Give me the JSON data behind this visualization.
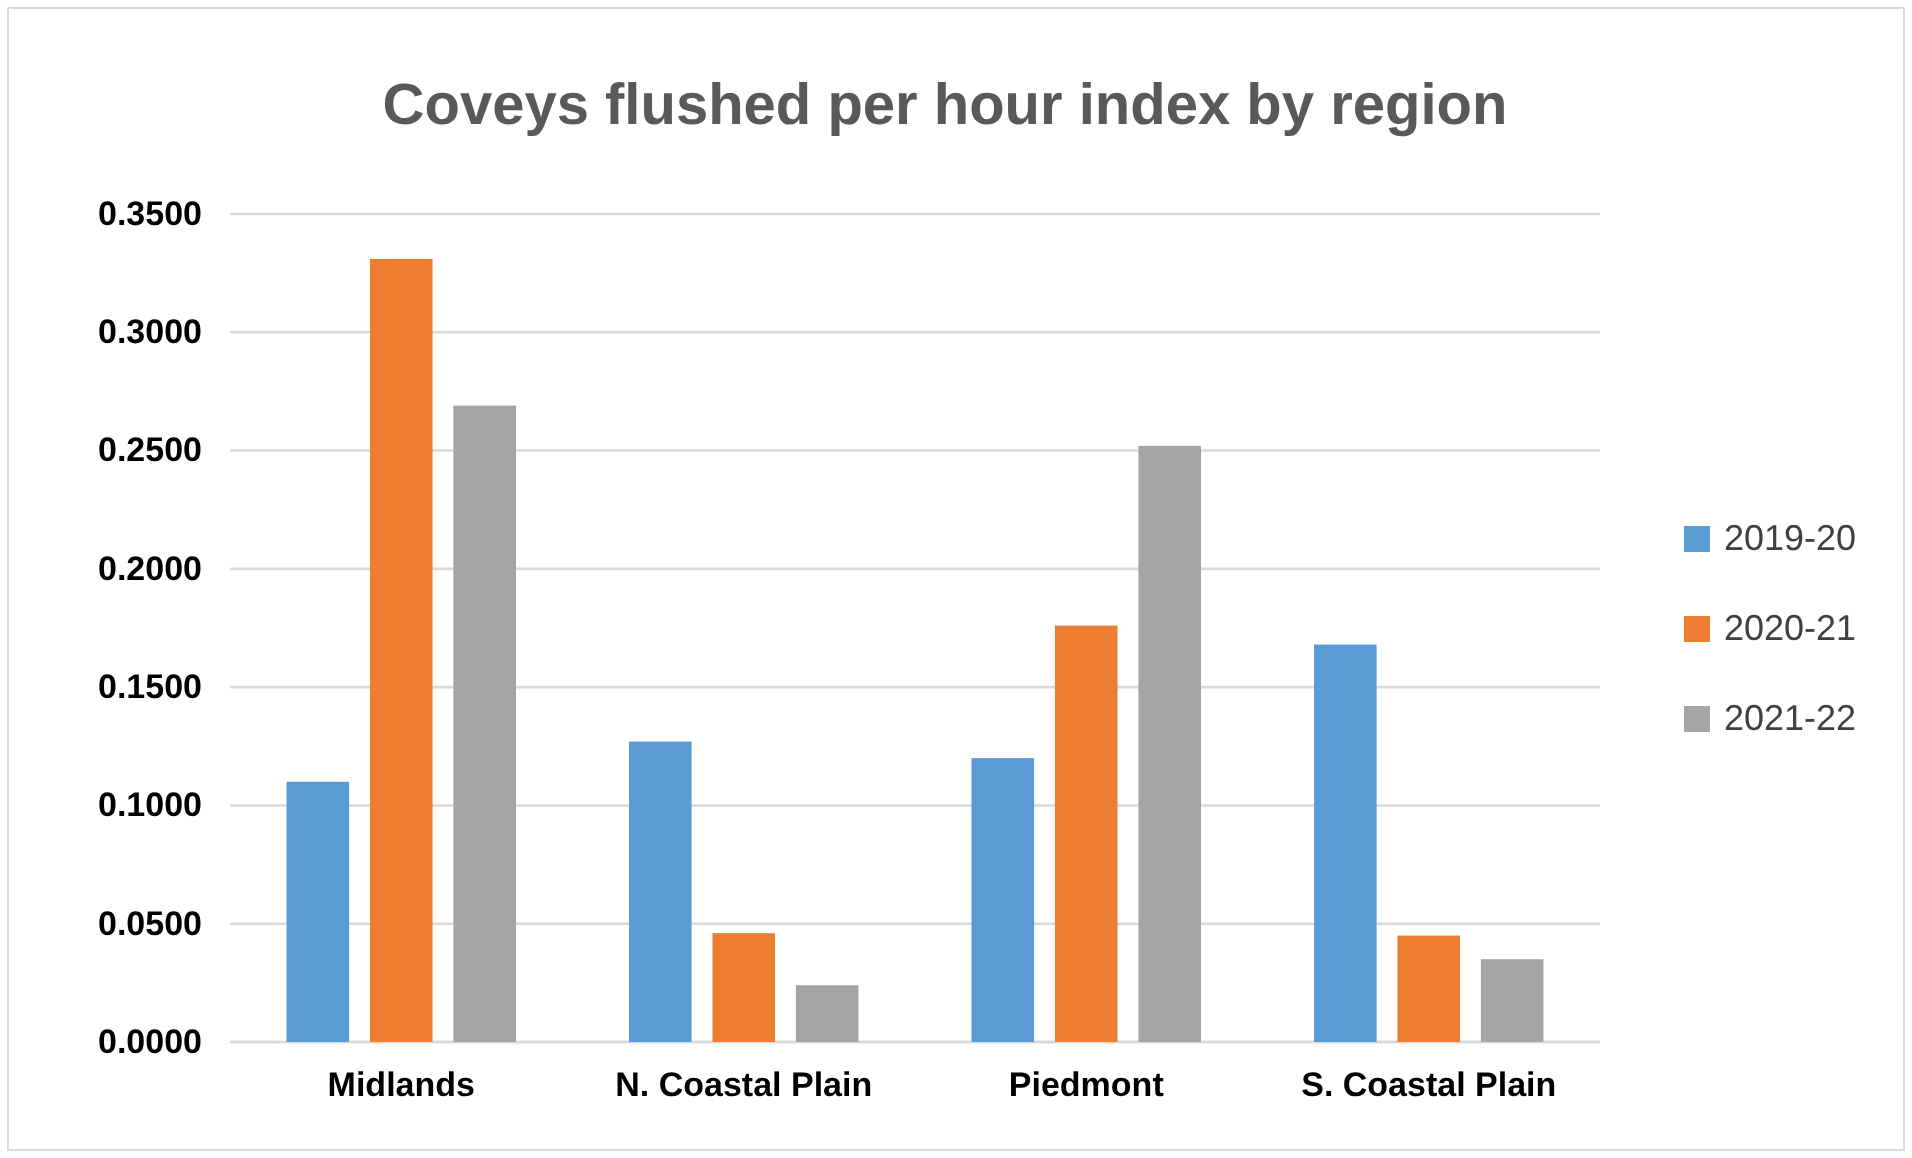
{
  "chart_data": {
    "type": "bar",
    "title": "Coveys flushed per hour index by region",
    "categories": [
      "Midlands",
      "N. Coastal Plain",
      "Piedmont",
      "S. Coastal Plain"
    ],
    "series": [
      {
        "name": "2019-20",
        "color": "#5b9bd5",
        "values": [
          0.11,
          0.127,
          0.12,
          0.168
        ]
      },
      {
        "name": "2020-21",
        "color": "#ed7d31",
        "values": [
          0.331,
          0.046,
          0.176,
          0.045
        ]
      },
      {
        "name": "2021-22",
        "color": "#a5a5a5",
        "values": [
          0.269,
          0.024,
          0.252,
          0.035
        ]
      }
    ],
    "ylim": [
      0,
      0.35
    ],
    "yticks": [
      {
        "value": 0,
        "label": "0.0000"
      },
      {
        "value": 0.05,
        "label": "0.0500"
      },
      {
        "value": 0.1,
        "label": "0.1000"
      },
      {
        "value": 0.15,
        "label": "0.1500"
      },
      {
        "value": 0.2,
        "label": "0.2000"
      },
      {
        "value": 0.25,
        "label": "0.2500"
      },
      {
        "value": 0.3,
        "label": "0.3000"
      },
      {
        "value": 0.35,
        "label": "0.3500"
      }
    ],
    "grid": "y",
    "legend": "right"
  }
}
